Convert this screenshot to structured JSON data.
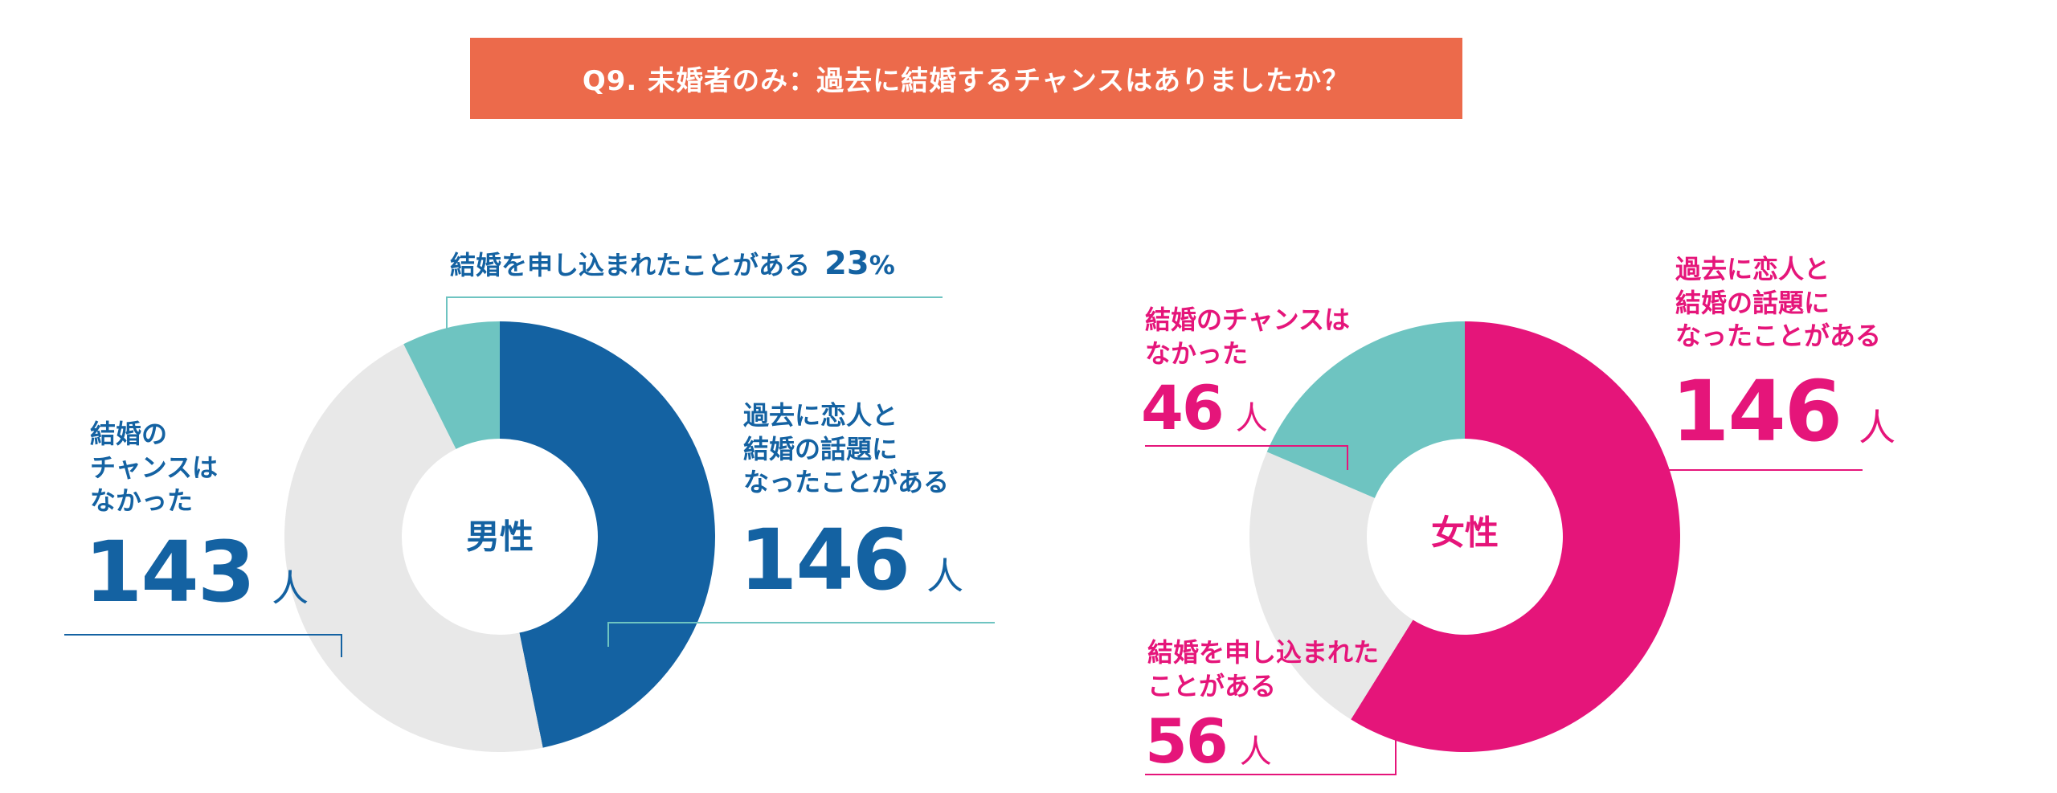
{
  "banner": {
    "title": "Q9. 未婚者のみ：過去に結婚するチャンスはありましたか？"
  },
  "colors": {
    "banner": "#EC6A4B",
    "male_main": "#1462A2",
    "female_main": "#E5157A",
    "teal": "#6EC4C1",
    "gray": "#E8E8E8"
  },
  "chart_data": [
    {
      "type": "pie",
      "center_label": "男性",
      "slices": [
        {
          "label": "過去に恋人と\n結婚の話題に\nなったことがある",
          "value": 146,
          "unit": "人",
          "color": "#1462A2"
        },
        {
          "label": "結婚の\nチャンスは\nなかった",
          "value": 143,
          "unit": "人",
          "color": "#E8E8E8"
        },
        {
          "label": "結婚を申し込まれたことがある",
          "value": 23,
          "unit": "%",
          "color": "#6EC4C1"
        }
      ]
    },
    {
      "type": "pie",
      "center_label": "女性",
      "slices": [
        {
          "label": "過去に恋人と\n結婚の話題に\nなったことがある",
          "value": 146,
          "unit": "人",
          "color": "#E5157A"
        },
        {
          "label": "結婚を申し込まれた\nことがある",
          "value": 56,
          "unit": "人",
          "color": "#E8E8E8"
        },
        {
          "label": "結婚のチャンスは\nなかった",
          "value": 46,
          "unit": "人",
          "color": "#6EC4C1"
        }
      ]
    }
  ]
}
